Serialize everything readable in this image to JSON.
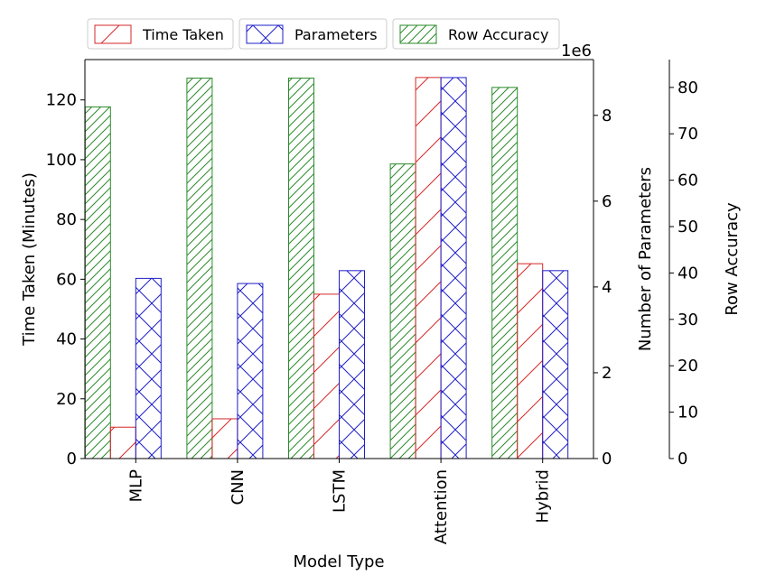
{
  "chart_data": {
    "type": "bar",
    "categories": [
      "MLP",
      "CNN",
      "LSTM",
      "Attention",
      "Hybrid"
    ],
    "xlabel": "Model Type",
    "series": [
      {
        "name": "Time Taken",
        "axis": "left",
        "color": "#d62728",
        "hatch": "diagonal-single",
        "values": [
          10.5,
          13.3,
          55.0,
          127.5,
          65.2
        ]
      },
      {
        "name": "Parameters",
        "axis": "middle",
        "color": "#1f1fc8",
        "hatch": "cross",
        "values": [
          4200000,
          4080000,
          4380000,
          8880000,
          4380000
        ]
      },
      {
        "name": "Row Accuracy",
        "axis": "right",
        "color": "#2a8a2a",
        "hatch": "diagonal-dense",
        "values": [
          75.8,
          82.0,
          82.0,
          63.5,
          80.0
        ]
      }
    ],
    "axes": {
      "left": {
        "label": "Time Taken (Minutes)",
        "ylim": [
          0,
          133.5
        ],
        "ticks": [
          0,
          20,
          40,
          60,
          80,
          100,
          120
        ]
      },
      "middle": {
        "label": "Number of Parameters",
        "ylim": [
          0,
          9300000
        ],
        "ticks": [
          0,
          2,
          4,
          6,
          8
        ],
        "multiplier_label": "1e6"
      },
      "right": {
        "label": "Row Accuracy",
        "ylim": [
          0,
          86
        ],
        "ticks": [
          0,
          10,
          20,
          30,
          40,
          50,
          60,
          70,
          80
        ]
      }
    },
    "legend": {
      "placement": "top-left",
      "entries": [
        "Time Taken",
        "Parameters",
        "Row Accuracy"
      ]
    },
    "grid": false
  }
}
